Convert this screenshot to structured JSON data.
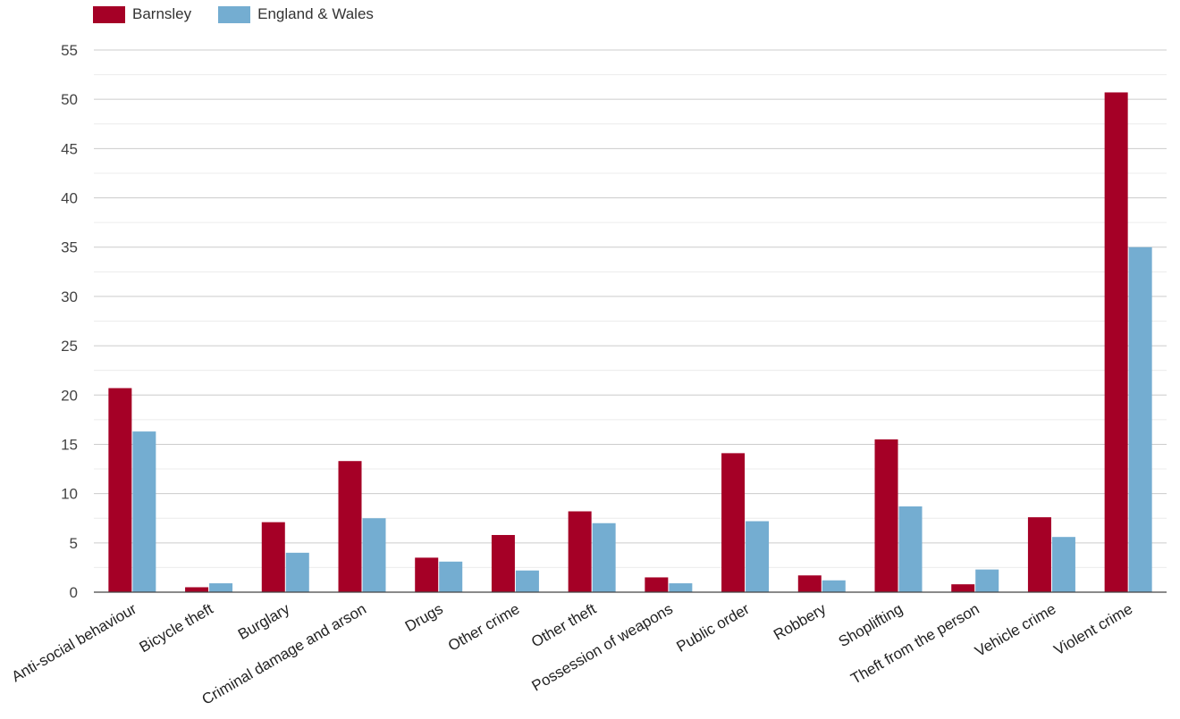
{
  "chart_data": {
    "type": "bar",
    "categories": [
      "Anti-social behaviour",
      "Bicycle theft",
      "Burglary",
      "Criminal damage and arson",
      "Drugs",
      "Other crime",
      "Other theft",
      "Possession of weapons",
      "Public order",
      "Robbery",
      "Shoplifting",
      "Theft from the person",
      "Vehicle crime",
      "Violent crime"
    ],
    "series": [
      {
        "name": "Barnsley",
        "color": "#a50026",
        "values": [
          20.7,
          0.5,
          7.1,
          13.3,
          3.5,
          5.8,
          8.2,
          1.5,
          14.1,
          1.7,
          15.5,
          0.8,
          7.6,
          50.7
        ]
      },
      {
        "name": "England & Wales",
        "color": "#74add1",
        "values": [
          16.3,
          0.9,
          4.0,
          7.5,
          3.1,
          2.2,
          7.0,
          0.9,
          7.2,
          1.2,
          8.7,
          2.3,
          5.6,
          35.0
        ]
      }
    ],
    "yticks": [
      0,
      5,
      10,
      15,
      20,
      25,
      30,
      35,
      40,
      45,
      50,
      55
    ],
    "ylim": [
      0,
      55
    ],
    "xlabel": "",
    "ylabel": "",
    "title": "",
    "grid": true,
    "legend_position": "top-left"
  }
}
